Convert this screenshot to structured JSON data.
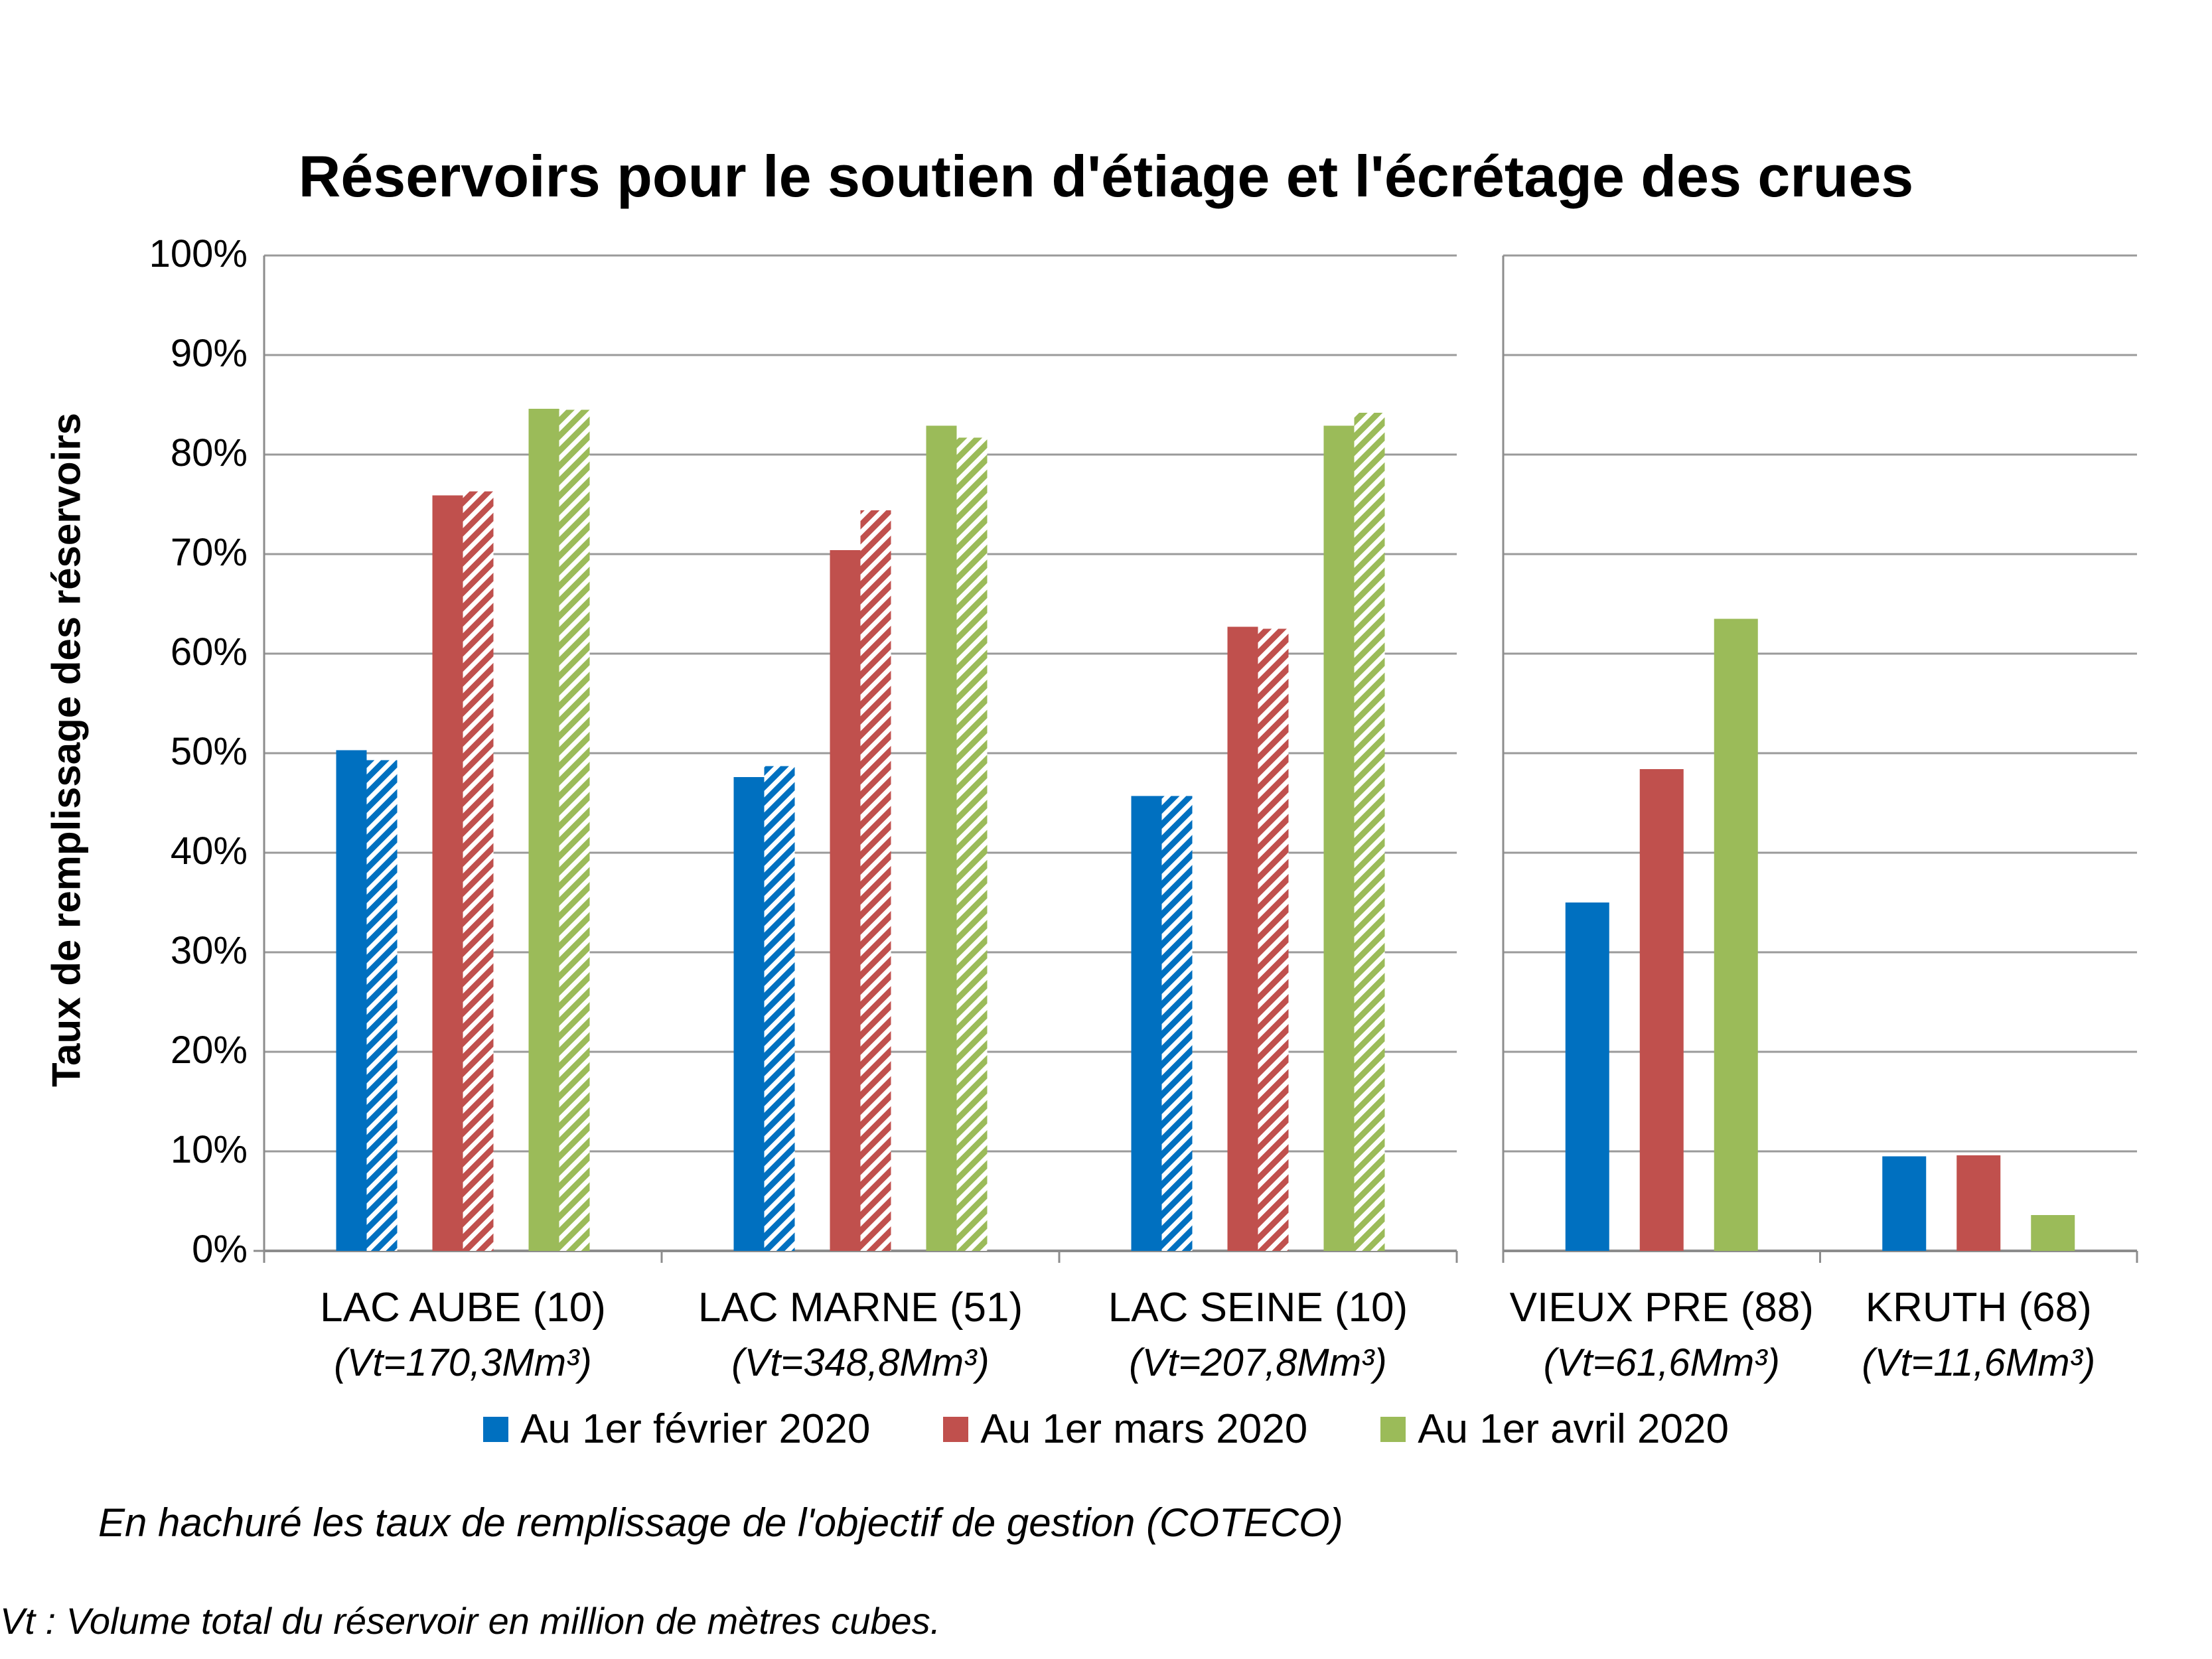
{
  "chart_data": {
    "type": "bar",
    "title": "Réservoirs pour le soutien d'étiage et l'écrétage des crues",
    "ylabel": "Taux de remplissage des réservoirs",
    "ylim": [
      0,
      100
    ],
    "yticks": [
      "0%",
      "10%",
      "20%",
      "30%",
      "40%",
      "50%",
      "60%",
      "70%",
      "80%",
      "90%",
      "100%"
    ],
    "categories": [
      {
        "name": "LAC AUBE (10)",
        "volume": "(Vt=170,3Mm³)"
      },
      {
        "name": "LAC MARNE (51)",
        "volume": "(Vt=348,8Mm³)"
      },
      {
        "name": "LAC SEINE (10)",
        "volume": "(Vt=207,8Mm³)"
      },
      {
        "name": "VIEUX PRE (88)",
        "volume": "(Vt=61,6Mm³)"
      },
      {
        "name": "KRUTH (68)",
        "volume": "(Vt=11,6Mm³)"
      }
    ],
    "series": [
      {
        "name": "Au 1er février 2020",
        "color": "#0070C0",
        "values": [
          50.3,
          47.6,
          45.7,
          35.0,
          9.5
        ],
        "objective": [
          49.3,
          48.7,
          45.7,
          null,
          null
        ]
      },
      {
        "name": "Au 1er mars 2020",
        "color": "#C0504D",
        "values": [
          75.9,
          70.4,
          62.7,
          48.4,
          9.6
        ],
        "objective": [
          76.3,
          74.4,
          62.5,
          null,
          null
        ]
      },
      {
        "name": "Au 1er avril 2020",
        "color": "#9BBB59",
        "values": [
          84.6,
          82.9,
          82.9,
          63.5,
          3.6
        ],
        "objective": [
          84.5,
          81.7,
          84.2,
          null,
          null
        ]
      }
    ],
    "grid": true,
    "legend_position": "bottom"
  },
  "notes": {
    "hatch_note": "En hachuré les taux de remplissage de l'objectif de gestion (COTECO)",
    "vt_note": "Vt : Volume total du réservoir en million de mètres cubes."
  }
}
